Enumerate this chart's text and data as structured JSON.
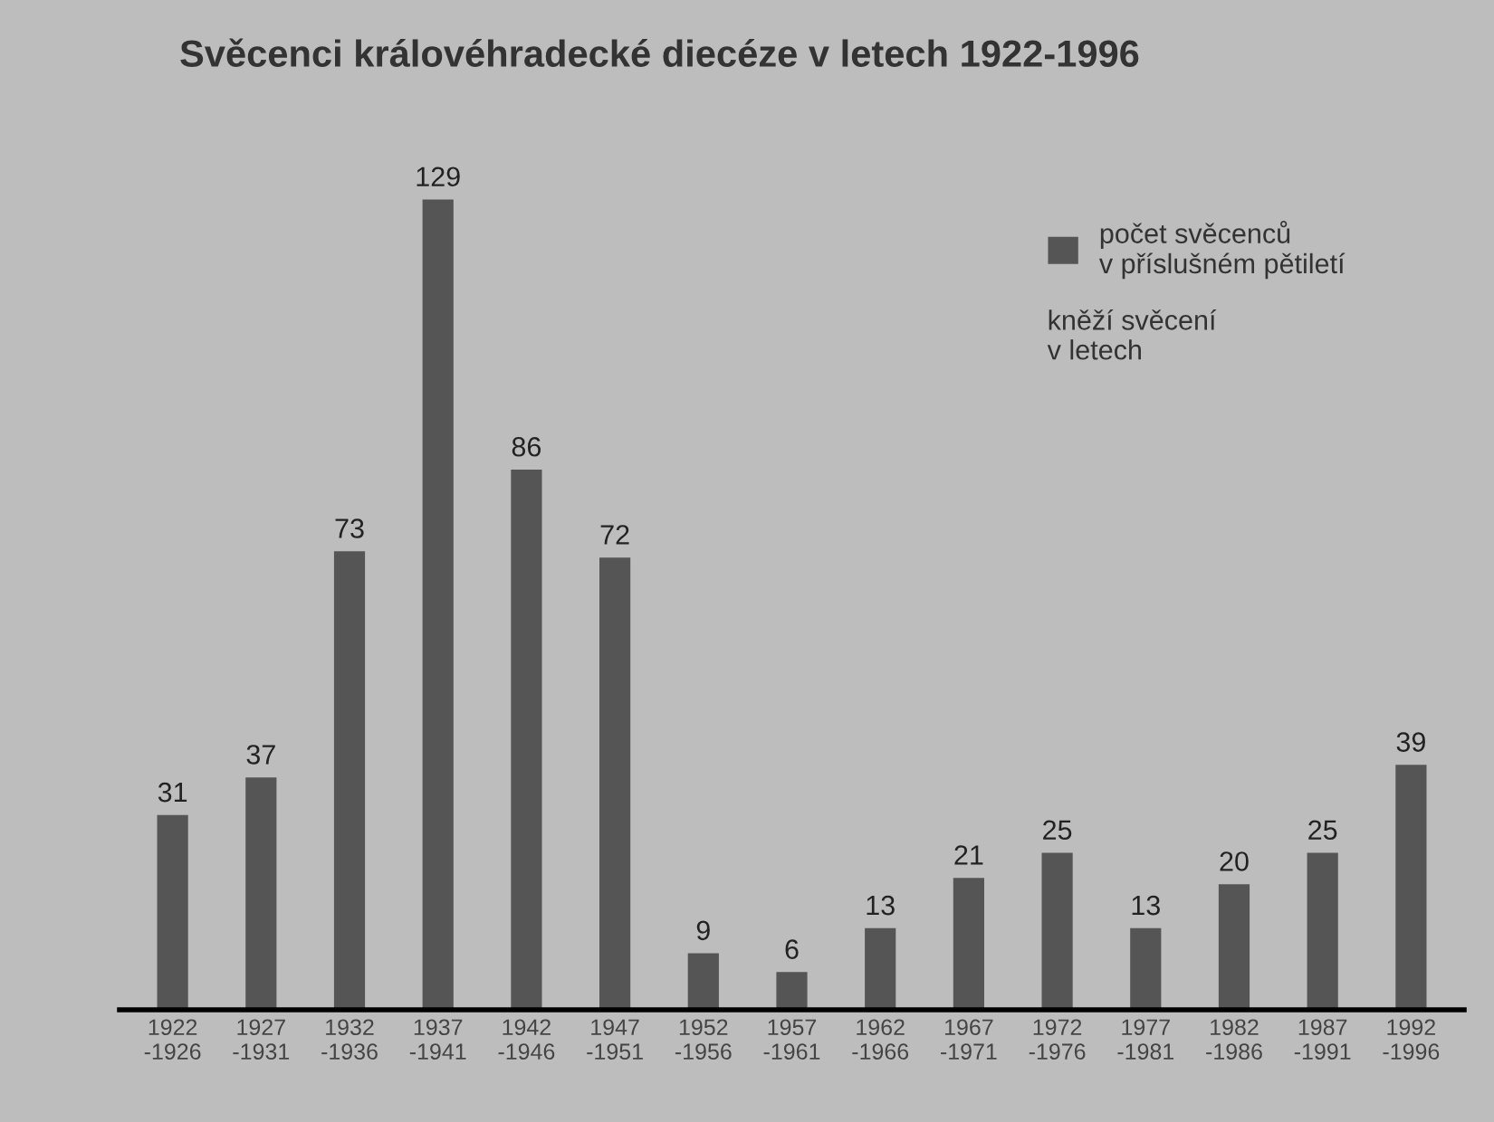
{
  "chart_data": {
    "type": "bar",
    "title": "Svěcenci královéhradecké diecéze v letech 1922-1996",
    "categories": [
      "1922\n-1926",
      "1927\n-1931",
      "1932\n-1936",
      "1937\n-1941",
      "1942\n-1946",
      "1947\n-1951",
      "1952\n-1956",
      "1957\n-1961",
      "1962\n-1966",
      "1967\n-1971",
      "1972\n-1976",
      "1977\n-1981",
      "1982\n-1986",
      "1987\n-1991",
      "1992\n-1996"
    ],
    "series": [
      {
        "name": "počet svěcenců\nv příslušném pětiletí",
        "color": "#555555",
        "values": [
          31,
          37,
          73,
          129,
          86,
          72,
          9,
          6,
          13,
          21,
          25,
          13,
          20,
          25,
          39
        ]
      }
    ],
    "annotations": [
      "kněží svěcení\nv letech"
    ],
    "data_labels": true,
    "legend": "top right",
    "grid": false,
    "tick_labels": "x"
  }
}
